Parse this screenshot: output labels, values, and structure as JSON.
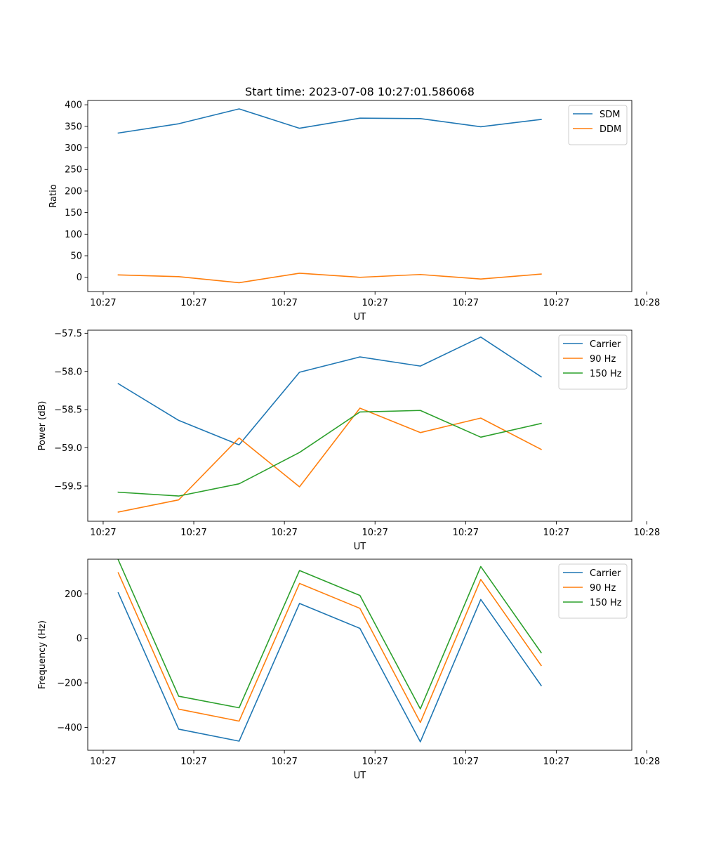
{
  "chart_data": [
    {
      "type": "line",
      "title": "Start time: 2023-07-08 10:27:01.586068",
      "xlabel": "UT",
      "ylabel": "Ratio",
      "x": [
        1,
        2,
        3,
        4,
        5,
        6,
        7,
        8
      ],
      "xlim": [
        0.495,
        9.5
      ],
      "ylim": [
        -33,
        410
      ],
      "xticks": [
        0.75,
        2.25,
        3.75,
        5.25,
        6.75,
        8.25,
        9.75
      ],
      "xtick_labels": [
        "10:27",
        "10:27",
        "10:27",
        "10:27",
        "10:27",
        "10:27",
        "10:28"
      ],
      "yticks": [
        0,
        50,
        100,
        150,
        200,
        250,
        300,
        350,
        400
      ],
      "ytick_labels": [
        "0",
        "50",
        "100",
        "150",
        "200",
        "250",
        "300",
        "350",
        "400"
      ],
      "legend_position": "top-right",
      "grid": false,
      "series": [
        {
          "name": "SDM",
          "color": "#1f77b4",
          "values": [
            334.5,
            356,
            390.5,
            345.5,
            369,
            368,
            349,
            366
          ]
        },
        {
          "name": "DDM",
          "color": "#ff7f0e",
          "values": [
            5.5,
            1.5,
            -12.5,
            9.5,
            0,
            6.5,
            -4,
            7.5
          ]
        }
      ]
    },
    {
      "type": "line",
      "title": "",
      "xlabel": "UT",
      "ylabel": "Power (dB)",
      "x": [
        1,
        2,
        3,
        4,
        5,
        6,
        7,
        8
      ],
      "xlim": [
        0.495,
        9.5
      ],
      "ylim": [
        -59.96,
        -57.46
      ],
      "xticks": [
        0.75,
        2.25,
        3.75,
        5.25,
        6.75,
        8.25,
        9.75
      ],
      "xtick_labels": [
        "10:27",
        "10:27",
        "10:27",
        "10:27",
        "10:27",
        "10:27",
        "10:28"
      ],
      "yticks": [
        -59.5,
        -59.0,
        -58.5,
        -58.0,
        -57.5
      ],
      "ytick_labels": [
        "−59.5",
        "−59.0",
        "−58.5",
        "−58.0",
        "−57.5"
      ],
      "legend_position": "top-right",
      "grid": false,
      "series": [
        {
          "name": "Carrier",
          "color": "#1f77b4",
          "values": [
            -58.16,
            -58.64,
            -58.96,
            -58.01,
            -57.81,
            -57.93,
            -57.55,
            -58.07
          ]
        },
        {
          "name": "90 Hz",
          "color": "#ff7f0e",
          "values": [
            -59.84,
            -59.68,
            -58.87,
            -59.51,
            -58.48,
            -58.8,
            -58.61,
            -59.02
          ]
        },
        {
          "name": "150 Hz",
          "color": "#2ca02c",
          "values": [
            -59.58,
            -59.63,
            -59.47,
            -59.06,
            -58.53,
            -58.51,
            -58.86,
            -58.68
          ]
        }
      ]
    },
    {
      "type": "line",
      "title": "",
      "xlabel": "UT",
      "ylabel": "Frequency (Hz)",
      "x": [
        1,
        2,
        3,
        4,
        5,
        6,
        7,
        8
      ],
      "xlim": [
        0.495,
        9.5
      ],
      "ylim": [
        -503,
        356
      ],
      "xticks": [
        0.75,
        2.25,
        3.75,
        5.25,
        6.75,
        8.25,
        9.75
      ],
      "xtick_labels": [
        "10:27",
        "10:27",
        "10:27",
        "10:27",
        "10:27",
        "10:27",
        "10:28"
      ],
      "yticks": [
        -400,
        -200,
        0,
        200
      ],
      "ytick_labels": [
        "−400",
        "−200",
        "0",
        "200"
      ],
      "legend_position": "top-right",
      "grid": false,
      "series": [
        {
          "name": "Carrier",
          "color": "#1f77b4",
          "values": [
            205,
            -408,
            -462,
            157,
            45,
            -465,
            175,
            -212
          ]
        },
        {
          "name": "90 Hz",
          "color": "#ff7f0e",
          "values": [
            295,
            -318,
            -372,
            247,
            135,
            -378,
            265,
            -122
          ]
        },
        {
          "name": "150 Hz",
          "color": "#2ca02c",
          "values": [
            353,
            -260,
            -312,
            305,
            193,
            -317,
            323,
            -64
          ]
        }
      ]
    }
  ]
}
